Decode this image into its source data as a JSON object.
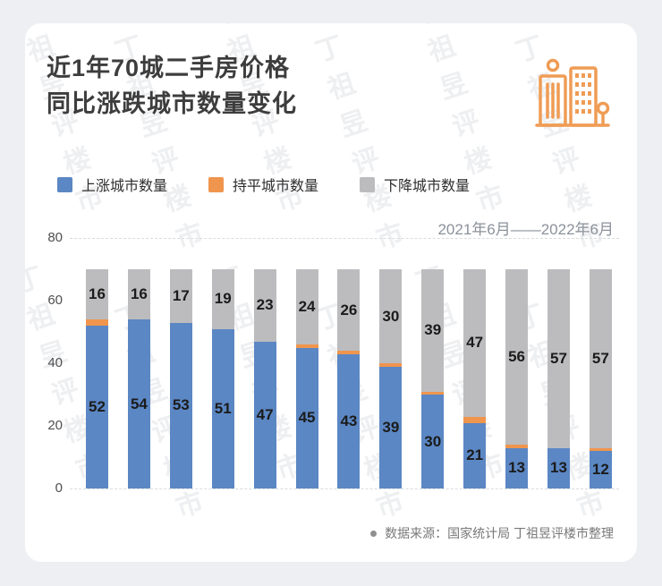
{
  "page": {
    "background": "#edeff2",
    "card_background": "#ffffff",
    "watermark_text": "丁祖昱评楼市"
  },
  "header": {
    "title_line1": "近1年70城二手房价格",
    "title_line2": "同比涨跌城市数量变化",
    "icon": "buildings-icon",
    "icon_color": "#ef9c55"
  },
  "footer": {
    "source_text": "数据来源：国家统计局 丁祖昱评楼市整理"
  },
  "chart_data": {
    "type": "bar",
    "stacked": true,
    "title": "近1年70城二手房价格同比涨跌城市数量变化",
    "period_label": "2021年6月——2022年6月",
    "n_bars": 13,
    "x_axis_labels_visible": false,
    "series": [
      {
        "name": "上涨城市数量",
        "color": "#5b87c4",
        "labels_visible": true,
        "values": [
          52,
          54,
          53,
          51,
          47,
          45,
          43,
          39,
          30,
          21,
          13,
          13,
          12
        ]
      },
      {
        "name": "持平城市数量",
        "color": "#f0954e",
        "labels_visible": false,
        "estimated": true,
        "values": [
          2,
          0,
          0,
          0,
          0,
          1,
          1,
          1,
          1,
          2,
          1,
          0,
          1
        ]
      },
      {
        "name": "下降城市数量",
        "color": "#bcbcbe",
        "labels_visible": true,
        "values": [
          16,
          16,
          17,
          19,
          23,
          24,
          26,
          30,
          39,
          47,
          56,
          57,
          57
        ]
      }
    ],
    "ylim": [
      0,
      80
    ],
    "yticks": [
      0,
      20,
      40,
      60,
      80
    ],
    "grid": "dashed horizontal lines at y=0 and y=80",
    "legend_position": "top-left"
  }
}
